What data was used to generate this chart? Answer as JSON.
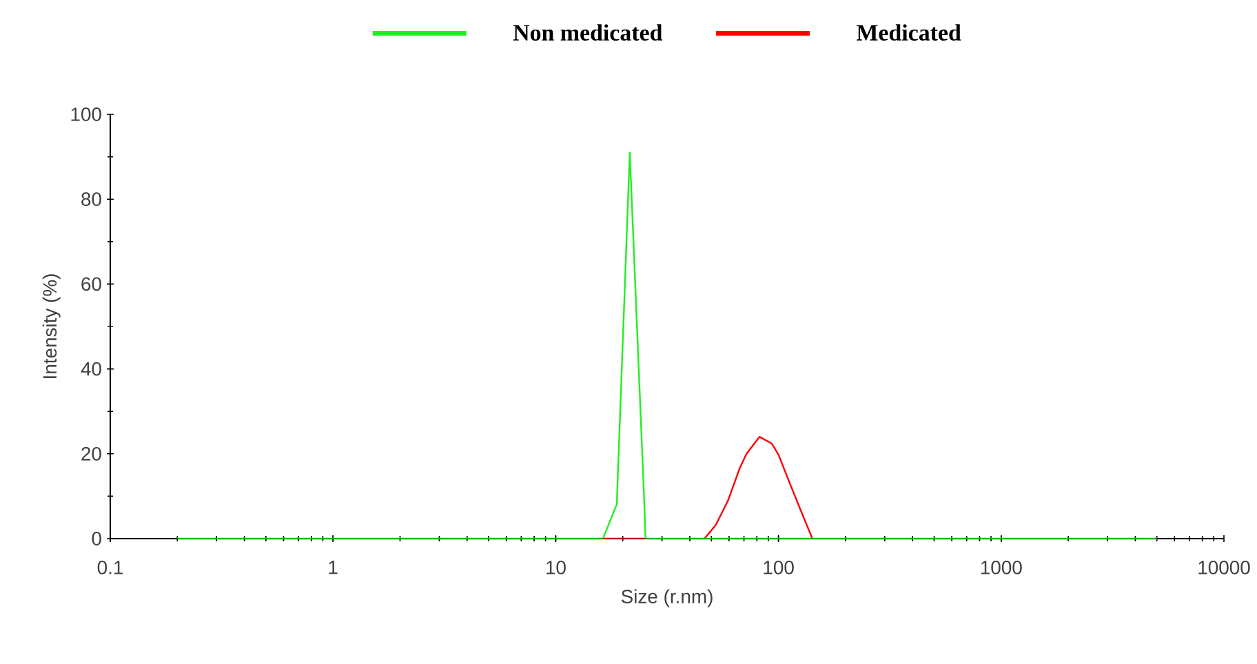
{
  "chart_data": {
    "type": "line",
    "xlabel": "Size (r.nm)",
    "ylabel": "Intensity (%)",
    "log": "x",
    "xlim": [
      0.1,
      10000
    ],
    "xticks": [
      0.1,
      1,
      10,
      100,
      1000,
      10000
    ],
    "ylim": [
      0,
      100
    ],
    "yticks": [
      0,
      20,
      40,
      60,
      80,
      100
    ],
    "grid": false,
    "legend": "top",
    "marker": "none",
    "line_style": "solid",
    "series": [
      {
        "name": "Medicated",
        "color": "#ff0000",
        "x": [
          16.3,
          25,
          25.3,
          46.5,
          52.3,
          59.4,
          67,
          71.9,
          82.2,
          93.4,
          100,
          110,
          124,
          142
        ],
        "values": [
          0,
          0,
          null,
          0,
          3.2,
          9,
          16.6,
          20,
          24,
          22.4,
          19.8,
          14.3,
          7.5,
          0
        ]
      },
      {
        "name": "Non medicated",
        "color": "#22ee22",
        "x": [
          0.2,
          16.3,
          18.8,
          21.5,
          25,
          25.3,
          5000
        ],
        "values": [
          0,
          0,
          8.1,
          91,
          8,
          0,
          0
        ]
      }
    ]
  }
}
